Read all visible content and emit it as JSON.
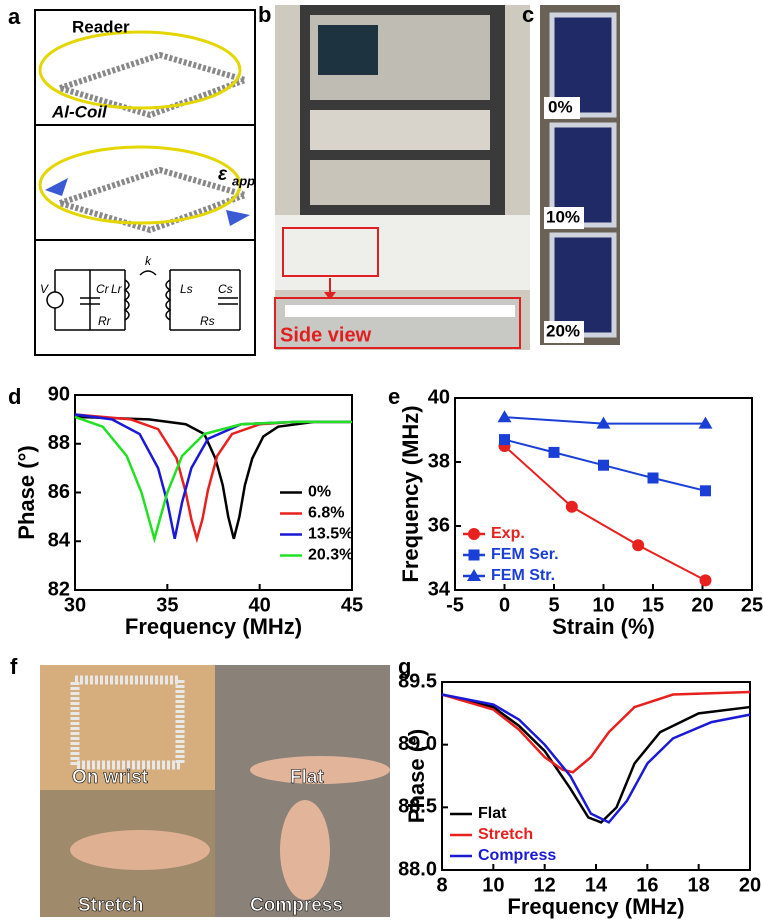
{
  "panel_labels": [
    "a",
    "b",
    "c",
    "d",
    "e",
    "f",
    "g"
  ],
  "panel_a": {
    "reader": "Reader",
    "coil": "Al-Coil",
    "strain_symbol": "ε",
    "strain_subscript": "app",
    "circuit": {
      "source": "V",
      "cr": "Cr",
      "lr": "Lr",
      "rr": "Rr",
      "k": "k",
      "ls": "Ls",
      "cs": "Cs",
      "rs": "Rs"
    }
  },
  "panel_b": {
    "side_view": "Side view"
  },
  "panel_c": {
    "strains": [
      "0%",
      "10%",
      "20%"
    ]
  },
  "panel_f": {
    "photos": [
      "On wrist",
      "Flat",
      "Stretch",
      "Compress"
    ]
  },
  "chart_data": [
    {
      "type": "line",
      "xlabel": "Frequency (MHz)",
      "ylabel": "Phase (°)",
      "xlim": [
        30,
        45
      ],
      "ylim": [
        82,
        90
      ],
      "xticks": [
        30,
        35,
        40,
        45
      ],
      "yticks": [
        82,
        84,
        86,
        88,
        90
      ],
      "grid": false,
      "legend": "center right",
      "legend_text_colored": false,
      "series": [
        {
          "name": "0%",
          "color": "#000000",
          "x": [
            30,
            34,
            36,
            37,
            37.6,
            38,
            38.3,
            38.6,
            38.9,
            39.2,
            39.6,
            40.2,
            41,
            43,
            45
          ],
          "values": [
            89.1,
            89.0,
            88.8,
            88.4,
            87.4,
            86.3,
            85.0,
            84.1,
            85.0,
            86.3,
            87.4,
            88.3,
            88.7,
            88.9,
            88.9
          ]
        },
        {
          "name": "6.8%",
          "color": "#e8201e",
          "x": [
            30,
            33,
            34.5,
            35.5,
            36,
            36.3,
            36.6,
            36.9,
            37.2,
            37.7,
            38.5,
            40,
            42,
            45
          ],
          "values": [
            89.2,
            89.0,
            88.6,
            87.4,
            86.0,
            84.9,
            84.1,
            84.9,
            86.1,
            87.5,
            88.4,
            88.8,
            88.9,
            88.9
          ]
        },
        {
          "name": "13.5%",
          "color": "#1a1ad6",
          "x": [
            30,
            32,
            33.5,
            34.5,
            35,
            35.4,
            35.8,
            36.3,
            37.2,
            39,
            42,
            45
          ],
          "values": [
            89.2,
            89.0,
            88.4,
            87.0,
            85.6,
            84.1,
            85.6,
            87.0,
            88.2,
            88.8,
            88.9,
            88.9
          ]
        },
        {
          "name": "20.3%",
          "color": "#22e022",
          "x": [
            30,
            31.5,
            32.8,
            33.6,
            34.3,
            35,
            35.8,
            37,
            39,
            42,
            45
          ],
          "values": [
            89.1,
            88.7,
            87.5,
            86.0,
            84.1,
            86.0,
            87.5,
            88.4,
            88.8,
            88.9,
            88.9
          ]
        }
      ]
    },
    {
      "type": "line",
      "xlabel": "Strain (%)",
      "ylabel": "Frequency (MHz)",
      "xlim": [
        -5,
        25
      ],
      "ylim": [
        34,
        40
      ],
      "xticks": [
        -5,
        0,
        5,
        10,
        15,
        20,
        25
      ],
      "yticks": [
        34,
        36,
        38,
        40
      ],
      "grid": false,
      "legend": "lower left",
      "legend_text_colored": true,
      "series": [
        {
          "name": "Exp.",
          "color": "#e8201e",
          "marker": "circle",
          "x": [
            0,
            6.8,
            13.5,
            20.3
          ],
          "values": [
            38.5,
            36.6,
            35.4,
            34.3
          ]
        },
        {
          "name": "FEM Ser.",
          "color": "#1a3fd6",
          "marker": "square",
          "x": [
            0,
            5,
            10,
            15,
            20.3
          ],
          "values": [
            38.7,
            38.3,
            37.9,
            37.5,
            37.1
          ]
        },
        {
          "name": "FEM Str.",
          "color": "#1a3fd6",
          "marker": "triangle",
          "x": [
            0,
            10,
            20.3
          ],
          "values": [
            39.4,
            39.2,
            39.2
          ]
        }
      ]
    },
    {
      "type": "line",
      "xlabel": "Frequency (MHz)",
      "ylabel": "Phase (°)",
      "xlim": [
        8,
        20
      ],
      "ylim": [
        88,
        89.5
      ],
      "xticks": [
        8,
        10,
        12,
        14,
        16,
        18,
        20
      ],
      "yticks": [
        {
          "value": 88,
          "label": "88.0"
        },
        88.5,
        {
          "value": 89,
          "label": "89.0"
        },
        89.5
      ],
      "grid": false,
      "legend": "lower left",
      "legend_text_colored": true,
      "series": [
        {
          "name": "Flat",
          "color": "#000000",
          "x": [
            8,
            10,
            11,
            12,
            13,
            13.7,
            14.2,
            14.8,
            15.5,
            16.5,
            18,
            20
          ],
          "values": [
            89.4,
            89.3,
            89.15,
            88.95,
            88.65,
            88.42,
            88.38,
            88.5,
            88.85,
            89.1,
            89.25,
            89.3
          ]
        },
        {
          "name": "Stretch",
          "color": "#e8201e",
          "x": [
            8,
            10,
            11,
            12,
            12.7,
            13.1,
            13.8,
            14.5,
            15.5,
            17,
            20
          ],
          "values": [
            89.4,
            89.28,
            89.12,
            88.9,
            88.8,
            88.78,
            88.9,
            89.1,
            89.3,
            89.4,
            89.42
          ]
        },
        {
          "name": "Compress",
          "color": "#1a1ad6",
          "x": [
            8,
            10,
            11,
            12,
            13,
            13.8,
            14.5,
            15.2,
            16,
            17,
            18.5,
            20
          ],
          "values": [
            89.4,
            89.32,
            89.2,
            89.0,
            88.75,
            88.45,
            88.38,
            88.55,
            88.85,
            89.05,
            89.18,
            89.24
          ]
        }
      ]
    }
  ]
}
